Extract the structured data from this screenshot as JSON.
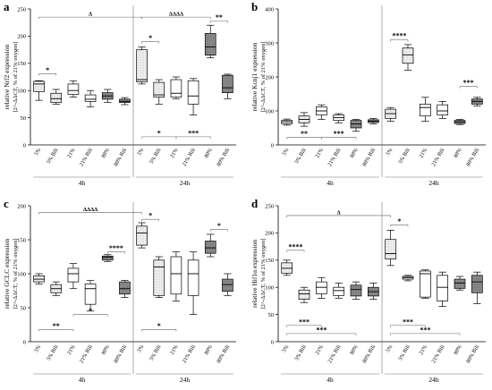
{
  "chart_data": [
    {
      "type": "box",
      "panel_letter": "a",
      "ylabel": "relative Nrf2 expression",
      "ylabel_sub": "[2^-ΔΔCT, % of 21% oxygen]",
      "ylim": [
        0,
        250
      ],
      "ytick_step": 50,
      "categories": [
        "5%",
        "5% Bili",
        "21%",
        "21% Bili",
        "80%",
        "80% Bili",
        "5%",
        "5% Bili",
        "21%",
        "21% Bili",
        "80%",
        "80% Bili"
      ],
      "patterns": [
        "light",
        "light",
        "white",
        "white",
        "dark",
        "dark",
        "light",
        "light",
        "white",
        "white",
        "dark",
        "dark"
      ],
      "boxes": [
        {
          "min": 82,
          "q1": 98,
          "median": 112,
          "q3": 117,
          "max": 118
        },
        {
          "min": 75,
          "q1": 78,
          "median": 85,
          "q3": 95,
          "max": 102
        },
        {
          "min": 88,
          "q1": 93,
          "median": 100,
          "q3": 112,
          "max": 118
        },
        {
          "min": 70,
          "q1": 80,
          "median": 84,
          "q3": 92,
          "max": 100
        },
        {
          "min": 78,
          "q1": 84,
          "median": 90,
          "q3": 96,
          "max": 102
        },
        {
          "min": 74,
          "q1": 78,
          "median": 80,
          "q3": 84,
          "max": 87
        },
        {
          "min": 112,
          "q1": 116,
          "median": 120,
          "q3": 175,
          "max": 180
        },
        {
          "min": 75,
          "q1": 88,
          "median": 92,
          "q3": 115,
          "max": 120
        },
        {
          "min": 85,
          "q1": 88,
          "median": 95,
          "q3": 120,
          "max": 125
        },
        {
          "min": 55,
          "q1": 75,
          "median": 90,
          "q3": 118,
          "max": 122
        },
        {
          "min": 160,
          "q1": 165,
          "median": 180,
          "q3": 205,
          "max": 220
        },
        {
          "min": 85,
          "q1": 96,
          "median": 105,
          "q3": 128,
          "max": 130
        }
      ],
      "annotations": [
        {
          "type": "bracket",
          "from": 1,
          "to": 7,
          "y": 235,
          "label": "Δ"
        },
        {
          "type": "bracket",
          "from": 7,
          "to": 11,
          "y": 235,
          "label": "ΔΔΔΔ"
        },
        {
          "type": "bracket",
          "from": 1,
          "to": 2,
          "y": 131,
          "label": "*"
        },
        {
          "type": "bracket",
          "from": 7,
          "to": 8,
          "y": 190,
          "label": "*"
        },
        {
          "type": "bracket",
          "from": 11,
          "to": 12,
          "y": 228,
          "label": "**"
        },
        {
          "type": "bracket",
          "from": 7,
          "to": 9,
          "y": 15,
          "label": "*",
          "label_below": false
        },
        {
          "type": "bracket",
          "from": 9,
          "to": 11,
          "y": 15,
          "label": "***",
          "label_below": false
        }
      ]
    },
    {
      "type": "box",
      "panel_letter": "b",
      "ylabel": "relative Kcnj1 expression",
      "ylabel_sub": "[2^-ΔΔCT, % of 21% oxygen]",
      "ylim": [
        0,
        400
      ],
      "ytick_step": 100,
      "categories": [
        "5%",
        "5% Bili",
        "21%",
        "21% Bili",
        "80%",
        "80% Bili",
        "5%",
        "5% Bili",
        "21%",
        "21% Bili",
        "80%",
        "80% Bili"
      ],
      "patterns": [
        "light",
        "light",
        "white",
        "white",
        "dark",
        "dark",
        "light",
        "light",
        "white",
        "white",
        "dark",
        "dark"
      ],
      "boxes": [
        {
          "min": 58,
          "q1": 62,
          "median": 68,
          "q3": 72,
          "max": 76
        },
        {
          "min": 55,
          "q1": 65,
          "median": 75,
          "q3": 85,
          "max": 95
        },
        {
          "min": 75,
          "q1": 88,
          "median": 100,
          "q3": 112,
          "max": 118
        },
        {
          "min": 65,
          "q1": 72,
          "median": 80,
          "q3": 88,
          "max": 92
        },
        {
          "min": 40,
          "q1": 50,
          "median": 62,
          "q3": 72,
          "max": 75
        },
        {
          "min": 62,
          "q1": 66,
          "median": 70,
          "q3": 74,
          "max": 78
        },
        {
          "min": 70,
          "q1": 78,
          "median": 92,
          "q3": 105,
          "max": 110
        },
        {
          "min": 220,
          "q1": 240,
          "median": 265,
          "q3": 285,
          "max": 295
        },
        {
          "min": 70,
          "q1": 85,
          "median": 110,
          "q3": 120,
          "max": 140
        },
        {
          "min": 78,
          "q1": 88,
          "median": 100,
          "q3": 118,
          "max": 128
        },
        {
          "min": 60,
          "q1": 63,
          "median": 68,
          "q3": 72,
          "max": 75
        },
        {
          "min": 115,
          "q1": 120,
          "median": 128,
          "q3": 135,
          "max": 140
        }
      ],
      "annotations": [
        {
          "type": "bracket",
          "from": 7,
          "to": 8,
          "y": 310,
          "label": "****"
        },
        {
          "type": "bracket",
          "from": 11,
          "to": 12,
          "y": 172,
          "label": "***"
        },
        {
          "type": "bracket",
          "from": 1,
          "to": 3,
          "y": 22,
          "label": "**",
          "label_below": false
        },
        {
          "type": "bracket",
          "from": 3,
          "to": 5,
          "y": 22,
          "label": "***",
          "label_below": false
        }
      ]
    },
    {
      "type": "box",
      "panel_letter": "c",
      "ylabel": "relative GCLC expression",
      "ylabel_sub": "[2^-ΔΔCT, % of 21% oxygen]",
      "ylim": [
        0,
        200
      ],
      "ytick_step": 50,
      "categories": [
        "5%",
        "5% Bili",
        "21%",
        "21% Bili",
        "80%",
        "80% Bili",
        "5%",
        "5% Bili",
        "21%",
        "21% Bili",
        "80%",
        "80% Bili"
      ],
      "patterns": [
        "light",
        "light",
        "white",
        "white",
        "dark",
        "dark",
        "light",
        "light",
        "white",
        "white",
        "dark",
        "dark"
      ],
      "boxes": [
        {
          "min": 85,
          "q1": 88,
          "median": 92,
          "q3": 97,
          "max": 100
        },
        {
          "min": 68,
          "q1": 72,
          "median": 78,
          "q3": 84,
          "max": 88
        },
        {
          "min": 78,
          "q1": 88,
          "median": 100,
          "q3": 108,
          "max": 115
        },
        {
          "min": 45,
          "q1": 55,
          "median": 78,
          "q3": 85,
          "max": 90
        },
        {
          "min": 118,
          "q1": 120,
          "median": 124,
          "q3": 126,
          "max": 128
        },
        {
          "min": 65,
          "q1": 70,
          "median": 78,
          "q3": 88,
          "max": 90
        },
        {
          "min": 138,
          "q1": 142,
          "median": 160,
          "q3": 170,
          "max": 175
        },
        {
          "min": 65,
          "q1": 68,
          "median": 110,
          "q3": 120,
          "max": 125
        },
        {
          "min": 60,
          "q1": 70,
          "median": 100,
          "q3": 125,
          "max": 132
        },
        {
          "min": 40,
          "q1": 68,
          "median": 100,
          "q3": 120,
          "max": 132
        },
        {
          "min": 125,
          "q1": 130,
          "median": 138,
          "q3": 148,
          "max": 158
        },
        {
          "min": 68,
          "q1": 74,
          "median": 84,
          "q3": 92,
          "max": 100
        }
      ],
      "annotations": [
        {
          "type": "bracket",
          "from": 1,
          "to": 7,
          "y": 190,
          "label": "ΔΔΔΔ"
        },
        {
          "type": "bracket",
          "from": 7,
          "to": 8,
          "y": 180,
          "label": "*"
        },
        {
          "type": "bracket",
          "from": 11,
          "to": 12,
          "y": 165,
          "label": "*"
        },
        {
          "type": "bracket",
          "from": 5,
          "to": 6,
          "y": 132,
          "label": "****"
        },
        {
          "type": "bracket",
          "from": 1,
          "to": 3,
          "y": 18,
          "label": "**",
          "label_below": false
        },
        {
          "type": "bracket",
          "from": 3,
          "to": 5,
          "y": 40,
          "label": "*"
        },
        {
          "type": "bracket",
          "from": 7,
          "to": 9,
          "y": 18,
          "label": "*",
          "label_below": false
        }
      ]
    },
    {
      "type": "box",
      "panel_letter": "d",
      "ylabel": "relative Hif1α expression",
      "ylabel_sub": "[2^-ΔΔCT, % of 21% oxygen]",
      "ylim": [
        0,
        250
      ],
      "ytick_step": 50,
      "categories": [
        "5%",
        "5% Bili",
        "21%",
        "21% Bili",
        "80%",
        "80% Bili",
        "5%",
        "5% Bili",
        "21%",
        "21% Bili",
        "80%",
        "80% Bili"
      ],
      "patterns": [
        "light",
        "light",
        "white",
        "white",
        "dark",
        "dark",
        "light",
        "light",
        "white",
        "white",
        "dark",
        "dark"
      ],
      "boxes": [
        {
          "min": 122,
          "q1": 126,
          "median": 135,
          "q3": 145,
          "max": 150
        },
        {
          "min": 72,
          "q1": 78,
          "median": 88,
          "q3": 95,
          "max": 100
        },
        {
          "min": 80,
          "q1": 88,
          "median": 100,
          "q3": 110,
          "max": 118
        },
        {
          "min": 80,
          "q1": 85,
          "median": 94,
          "q3": 100,
          "max": 108
        },
        {
          "min": 78,
          "q1": 84,
          "median": 96,
          "q3": 104,
          "max": 110
        },
        {
          "min": 78,
          "q1": 84,
          "median": 92,
          "q3": 100,
          "max": 108
        },
        {
          "min": 140,
          "q1": 152,
          "median": 162,
          "q3": 188,
          "max": 205
        },
        {
          "min": 112,
          "q1": 115,
          "median": 118,
          "q3": 120,
          "max": 122
        },
        {
          "min": 80,
          "q1": 82,
          "median": 125,
          "q3": 130,
          "max": 132
        },
        {
          "min": 65,
          "q1": 75,
          "median": 100,
          "q3": 122,
          "max": 128
        },
        {
          "min": 95,
          "q1": 98,
          "median": 108,
          "q3": 115,
          "max": 120
        },
        {
          "min": 70,
          "q1": 90,
          "median": 110,
          "q3": 122,
          "max": 128
        }
      ],
      "annotations": [
        {
          "type": "bracket",
          "from": 1,
          "to": 7,
          "y": 232,
          "label": "Δ"
        },
        {
          "type": "bracket",
          "from": 7,
          "to": 8,
          "y": 215,
          "label": "*"
        },
        {
          "type": "bracket",
          "from": 1,
          "to": 2,
          "y": 168,
          "label": "****"
        },
        {
          "type": "bracket",
          "from": 1,
          "to": 3,
          "y": 30,
          "label": "***"
        },
        {
          "type": "bracket",
          "from": 1,
          "to": 5,
          "y": 15,
          "label": "***",
          "label_below": false
        },
        {
          "type": "bracket",
          "from": 7,
          "to": 9,
          "y": 30,
          "label": "***"
        },
        {
          "type": "bracket",
          "from": 7,
          "to": 11,
          "y": 15,
          "label": "***",
          "label_below": false
        }
      ]
    }
  ],
  "time_groups": [
    "4h",
    "24h"
  ]
}
